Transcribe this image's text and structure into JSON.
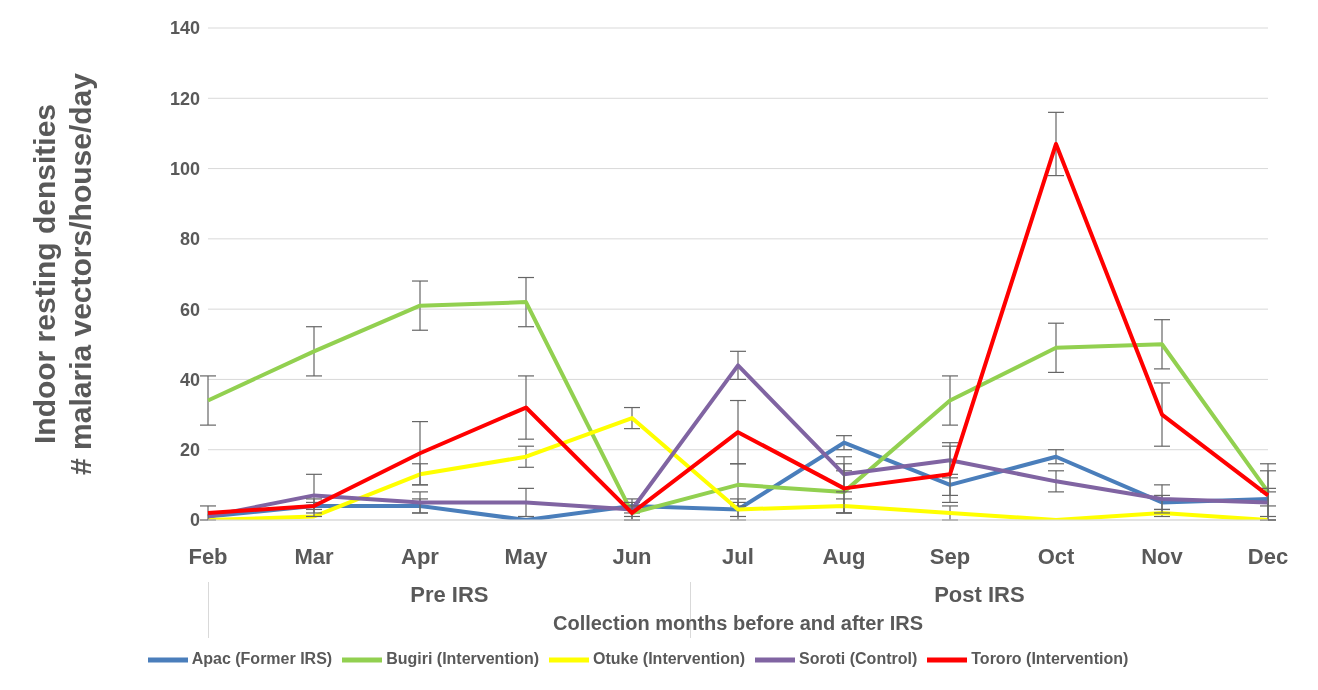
{
  "chart_data": {
    "type": "line",
    "ylabel": "Indoor resting densities\n# malaria vectors/house/day",
    "xlabel": "Collection months before and after IRS",
    "categories": [
      "Feb",
      "Mar",
      "Apr",
      "May",
      "Jun",
      "Jul",
      "Aug",
      "Sep",
      "Oct",
      "Nov",
      "Dec"
    ],
    "series": [
      {
        "name": "Apac (Former IRS)",
        "color": "#4a7ebb",
        "values": [
          1,
          4,
          4,
          0,
          4,
          3,
          22,
          10,
          18,
          5,
          6
        ],
        "errors": [
          null,
          1,
          2,
          null,
          2,
          2,
          2,
          3,
          2,
          2,
          2
        ]
      },
      {
        "name": "Bugiri (Intervention)",
        "color": "#92d050",
        "values": [
          34,
          48,
          61,
          62,
          2,
          10,
          8,
          34,
          49,
          50,
          8
        ],
        "errors": [
          7,
          7,
          7,
          7,
          2,
          6,
          6,
          7,
          7,
          7,
          8
        ]
      },
      {
        "name": "Otuke (Intervention)",
        "color": "#ffff00",
        "values": [
          0,
          1,
          13,
          18,
          29,
          3,
          4,
          2,
          0,
          2,
          0
        ],
        "errors": [
          null,
          null,
          3,
          3,
          3,
          3,
          2,
          2,
          null,
          1,
          null
        ]
      },
      {
        "name": "Soroti (Control)",
        "color": "#8064a2",
        "values": [
          1,
          7,
          5,
          5,
          3,
          44,
          13,
          17,
          11,
          6,
          5
        ],
        "errors": [
          null,
          6,
          3,
          4,
          2,
          4,
          5,
          5,
          3,
          4,
          4
        ]
      },
      {
        "name": "Tororo (Intervention)",
        "color": "#ff0000",
        "values": [
          2,
          4,
          19,
          32,
          2,
          25,
          9,
          13,
          107,
          30,
          7
        ],
        "errors": [
          2,
          2,
          9,
          9,
          2,
          9,
          7,
          8,
          9,
          9,
          7
        ]
      }
    ],
    "ylim": [
      0,
      140
    ],
    "yticks": [
      0,
      20,
      40,
      60,
      80,
      100,
      120,
      140
    ],
    "grid": "y",
    "legend": "bottom",
    "marker": "none",
    "line_style": "solid",
    "annotations": [
      "Pre IRS",
      "Post IRS"
    ]
  }
}
